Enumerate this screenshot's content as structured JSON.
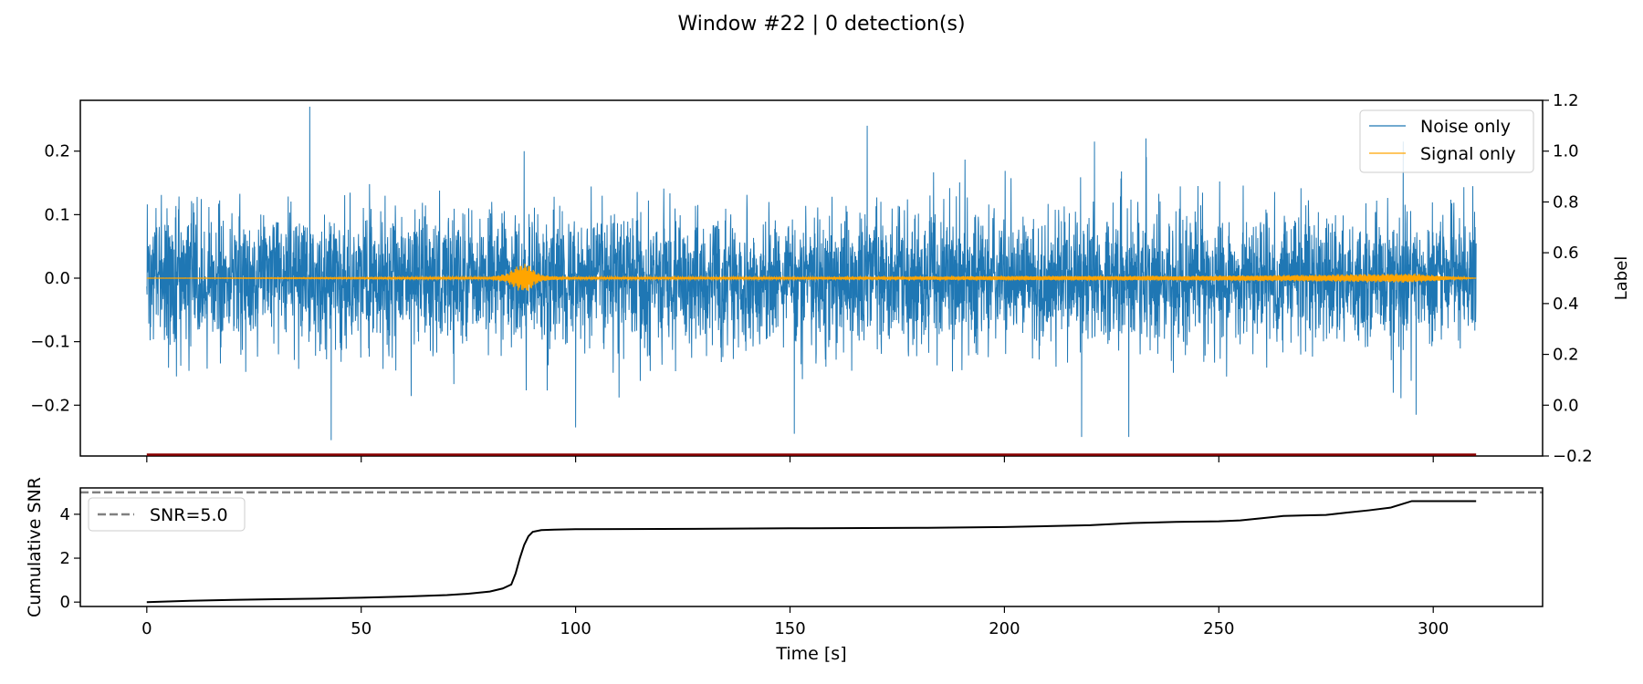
{
  "figure": {
    "title": "Window #22 | 0 detection(s)",
    "colors": {
      "noise": "#1f77b4",
      "signal": "#ffa500",
      "label_line": "#8b0000",
      "snr_curve": "#000000",
      "threshold": "#808080"
    }
  },
  "chart_data": [
    {
      "type": "line",
      "panel": "top",
      "title": "Window #22 | 0 detection(s)",
      "xlabel": "",
      "ylabel": "",
      "ylabel_right": "Label",
      "xlim": [
        -15.5,
        325.5
      ],
      "ylim": [
        -0.28,
        0.28
      ],
      "ylim_right": [
        -0.2,
        1.2
      ],
      "yticks": [
        -0.2,
        -0.1,
        0.0,
        0.1,
        0.2
      ],
      "yticks_right": [
        -0.2,
        0.0,
        0.2,
        0.4,
        0.6,
        0.8,
        1.0,
        1.2
      ],
      "legend_position": "top-right",
      "series": [
        {
          "name": "Noise only",
          "color": "#1f77b4",
          "x_range": [
            0,
            310
          ],
          "envelope_x": [
            0,
            20,
            40,
            60,
            80,
            100,
            120,
            140,
            160,
            180,
            200,
            220,
            240,
            260,
            280,
            310
          ],
          "envelope_typical": [
            0.12,
            0.13,
            0.13,
            0.13,
            0.13,
            0.13,
            0.13,
            0.13,
            0.13,
            0.13,
            0.13,
            0.13,
            0.13,
            0.13,
            0.13,
            0.13
          ],
          "peaks": [
            {
              "x": 38,
              "y": 0.27
            },
            {
              "x": 43,
              "y": -0.255
            },
            {
              "x": 88,
              "y": 0.2
            },
            {
              "x": 100,
              "y": -0.235
            },
            {
              "x": 151,
              "y": -0.245
            },
            {
              "x": 168,
              "y": 0.24
            },
            {
              "x": 218,
              "y": -0.25
            },
            {
              "x": 221,
              "y": 0.215
            },
            {
              "x": 229,
              "y": -0.25
            },
            {
              "x": 233,
              "y": 0.22
            },
            {
              "x": 293,
              "y": 0.215
            },
            {
              "x": 296,
              "y": -0.215
            }
          ]
        },
        {
          "name": "Signal only",
          "color": "#ffa500",
          "x": [
            0,
            80,
            84,
            86,
            88,
            89,
            90,
            92,
            95,
            100,
            150,
            180,
            210,
            240,
            255,
            275,
            285,
            295,
            310
          ],
          "amplitude": [
            0.0,
            0.002,
            0.008,
            0.02,
            0.028,
            0.025,
            0.015,
            0.006,
            0.003,
            0.002,
            0.002,
            0.003,
            0.004,
            0.004,
            0.005,
            0.006,
            0.007,
            0.008,
            0.0
          ]
        },
        {
          "name": "",
          "axis": "right",
          "color": "#8b0000",
          "x": [
            0,
            310
          ],
          "y": [
            -0.2,
            -0.2
          ]
        }
      ]
    },
    {
      "type": "line",
      "panel": "bottom",
      "xlabel": "Time [s]",
      "ylabel": "Cumulative SNR",
      "xlim": [
        -15.5,
        325.5
      ],
      "ylim": [
        -0.2,
        5.2
      ],
      "xticks": [
        0,
        50,
        100,
        150,
        200,
        250,
        300
      ],
      "yticks": [
        0,
        2,
        4
      ],
      "legend_position": "top-left",
      "threshold": {
        "name": "SNR=5.0",
        "y": 5.0,
        "style": "dashed"
      },
      "series": [
        {
          "name": "",
          "color": "#000000",
          "x": [
            0,
            10,
            20,
            30,
            40,
            50,
            60,
            70,
            75,
            80,
            83,
            85,
            86,
            87,
            88,
            89,
            90,
            92,
            95,
            100,
            120,
            150,
            180,
            200,
            220,
            230,
            240,
            250,
            255,
            260,
            265,
            270,
            275,
            280,
            285,
            290,
            295,
            310
          ],
          "y": [
            0.0,
            0.06,
            0.1,
            0.13,
            0.16,
            0.2,
            0.25,
            0.32,
            0.38,
            0.48,
            0.62,
            0.8,
            1.3,
            2.0,
            2.6,
            3.0,
            3.2,
            3.28,
            3.3,
            3.32,
            3.33,
            3.36,
            3.38,
            3.42,
            3.5,
            3.6,
            3.65,
            3.68,
            3.72,
            3.82,
            3.92,
            3.95,
            3.97,
            4.08,
            4.18,
            4.3,
            4.6,
            4.6
          ]
        }
      ]
    }
  ],
  "legend_top": {
    "noise_label": "Noise only",
    "signal_label": "Signal only"
  },
  "legend_bottom": {
    "threshold_label": "SNR=5.0"
  }
}
